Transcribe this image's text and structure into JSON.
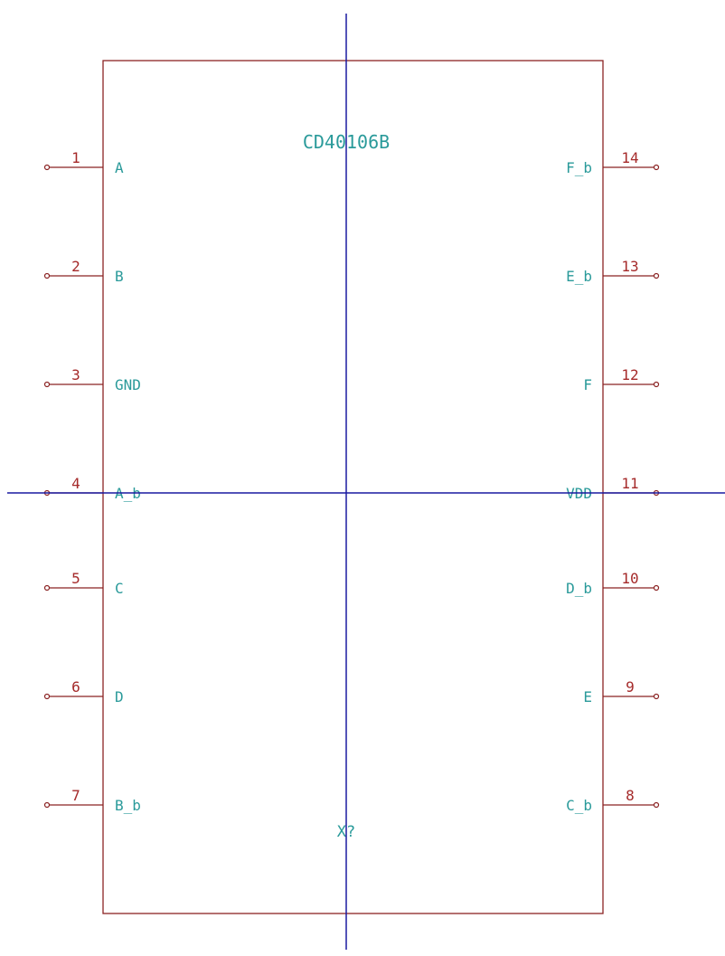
{
  "symbol": {
    "name": "CD40106B",
    "reference": "X?",
    "left_pins": [
      {
        "number": "1",
        "name": "A"
      },
      {
        "number": "2",
        "name": "B"
      },
      {
        "number": "3",
        "name": "GND"
      },
      {
        "number": "4",
        "name": "A_b"
      },
      {
        "number": "5",
        "name": "C"
      },
      {
        "number": "6",
        "name": "D"
      },
      {
        "number": "7",
        "name": "B_b"
      }
    ],
    "right_pins": [
      {
        "number": "14",
        "name": "F_b"
      },
      {
        "number": "13",
        "name": "E_b"
      },
      {
        "number": "12",
        "name": "F"
      },
      {
        "number": "11",
        "name": "VDD"
      },
      {
        "number": "10",
        "name": "D_b"
      },
      {
        "number": "9",
        "name": "E"
      },
      {
        "number": "8",
        "name": "C_b"
      }
    ]
  }
}
